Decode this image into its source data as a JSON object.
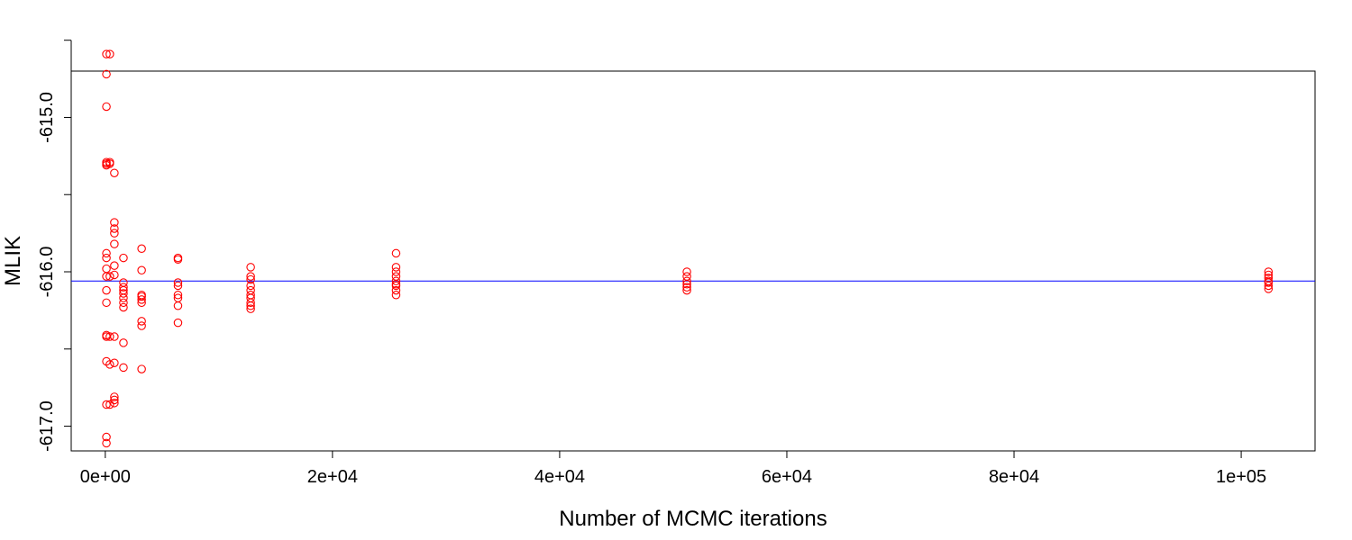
{
  "chart_data": {
    "type": "scatter",
    "title": "",
    "xlabel": "Number of MCMC iterations",
    "ylabel": "MLIK",
    "xlim": [
      -3000,
      106500
    ],
    "ylim": [
      -617.16,
      -614.7
    ],
    "x_ticks": [
      {
        "value": 0,
        "label": "0e+00"
      },
      {
        "value": 20000,
        "label": "2e+04"
      },
      {
        "value": 40000,
        "label": "4e+04"
      },
      {
        "value": 60000,
        "label": "6e+04"
      },
      {
        "value": 80000,
        "label": "8e+04"
      },
      {
        "value": 100000,
        "label": "1e+05"
      }
    ],
    "y_ticks": [
      {
        "value": -617.0,
        "label": "-617.0"
      },
      {
        "value": -616.5,
        "label": ""
      },
      {
        "value": -616.0,
        "label": "-616.0"
      },
      {
        "value": -615.5,
        "label": ""
      },
      {
        "value": -615.0,
        "label": "-615.0"
      },
      {
        "value": -614.5,
        "label": ""
      }
    ],
    "reference_line": {
      "y": -616.06,
      "color": "#0000ff"
    },
    "point_color": "#ff0000",
    "grid": false,
    "series": [
      {
        "points": [
          [
            100,
            -614.59
          ],
          [
            100,
            -614.72
          ],
          [
            100,
            -614.93
          ],
          [
            100,
            -615.29
          ],
          [
            100,
            -615.3
          ],
          [
            100,
            -615.31
          ],
          [
            100,
            -615.88
          ],
          [
            100,
            -615.91
          ],
          [
            100,
            -615.98
          ],
          [
            100,
            -616.03
          ],
          [
            100,
            -616.12
          ],
          [
            100,
            -616.2
          ],
          [
            100,
            -616.41
          ],
          [
            100,
            -616.42
          ],
          [
            100,
            -616.58
          ],
          [
            100,
            -616.86
          ],
          [
            100,
            -617.07
          ],
          [
            100,
            -617.11
          ],
          [
            400,
            -614.59
          ],
          [
            400,
            -615.29
          ],
          [
            400,
            -615.3
          ],
          [
            400,
            -616.03
          ],
          [
            400,
            -616.42
          ],
          [
            400,
            -616.6
          ],
          [
            400,
            -616.86
          ],
          [
            800,
            -615.36
          ],
          [
            800,
            -615.68
          ],
          [
            800,
            -615.72
          ],
          [
            800,
            -615.75
          ],
          [
            800,
            -615.82
          ],
          [
            800,
            -615.96
          ],
          [
            800,
            -616.02
          ],
          [
            800,
            -616.42
          ],
          [
            800,
            -616.59
          ],
          [
            800,
            -616.81
          ],
          [
            800,
            -616.83
          ],
          [
            800,
            -616.85
          ],
          [
            1600,
            -615.91
          ],
          [
            1600,
            -616.07
          ],
          [
            1600,
            -616.1
          ],
          [
            1600,
            -616.12
          ],
          [
            1600,
            -616.14
          ],
          [
            1600,
            -616.17
          ],
          [
            1600,
            -616.2
          ],
          [
            1600,
            -616.23
          ],
          [
            1600,
            -616.46
          ],
          [
            1600,
            -616.62
          ],
          [
            3200,
            -615.85
          ],
          [
            3200,
            -615.99
          ],
          [
            3200,
            -616.15
          ],
          [
            3200,
            -616.16
          ],
          [
            3200,
            -616.18
          ],
          [
            3200,
            -616.2
          ],
          [
            3200,
            -616.32
          ],
          [
            3200,
            -616.35
          ],
          [
            3200,
            -616.63
          ],
          [
            6400,
            -615.91
          ],
          [
            6400,
            -615.92
          ],
          [
            6400,
            -616.07
          ],
          [
            6400,
            -616.09
          ],
          [
            6400,
            -616.15
          ],
          [
            6400,
            -616.17
          ],
          [
            6400,
            -616.22
          ],
          [
            6400,
            -616.33
          ],
          [
            12800,
            -615.97
          ],
          [
            12800,
            -616.03
          ],
          [
            12800,
            -616.05
          ],
          [
            12800,
            -616.09
          ],
          [
            12800,
            -616.12
          ],
          [
            12800,
            -616.15
          ],
          [
            12800,
            -616.17
          ],
          [
            12800,
            -616.2
          ],
          [
            12800,
            -616.22
          ],
          [
            12800,
            -616.24
          ],
          [
            25600,
            -615.88
          ],
          [
            25600,
            -615.97
          ],
          [
            25600,
            -616.0
          ],
          [
            25600,
            -616.03
          ],
          [
            25600,
            -616.06
          ],
          [
            25600,
            -616.08
          ],
          [
            25600,
            -616.09
          ],
          [
            25600,
            -616.12
          ],
          [
            25600,
            -616.15
          ],
          [
            51200,
            -616.0
          ],
          [
            51200,
            -616.03
          ],
          [
            51200,
            -616.06
          ],
          [
            51200,
            -616.08
          ],
          [
            51200,
            -616.1
          ],
          [
            51200,
            -616.12
          ],
          [
            102400,
            -616.0
          ],
          [
            102400,
            -616.02
          ],
          [
            102400,
            -616.04
          ],
          [
            102400,
            -616.06
          ],
          [
            102400,
            -616.07
          ],
          [
            102400,
            -616.09
          ],
          [
            102400,
            -616.11
          ]
        ]
      }
    ]
  }
}
